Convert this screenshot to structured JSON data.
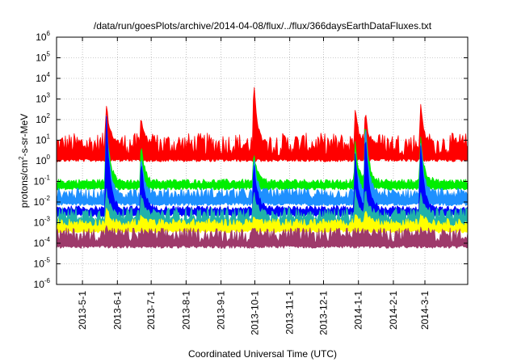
{
  "chart_data": {
    "type": "area",
    "title": "/data/run/goesPlots/archive/2014-04-08/flux/../flux/366daysEarthDataFluxes.txt",
    "xlabel": "Coordinated Universal Time (UTC)",
    "ylabel": "protons/cm2-s-sr-MeV",
    "ylabel_parts": {
      "pre": "protons/cm",
      "sup": "2",
      "post": "-s-sr-MeV"
    },
    "y_scale": "log",
    "ylim_exponents": [
      -6,
      6
    ],
    "y_ticks": [
      {
        "base": "10",
        "exp": "-6"
      },
      {
        "base": "10",
        "exp": "-5"
      },
      {
        "base": "10",
        "exp": "-4"
      },
      {
        "base": "10",
        "exp": "-3"
      },
      {
        "base": "10",
        "exp": "-2"
      },
      {
        "base": "10",
        "exp": "-1"
      },
      {
        "base": "10",
        "exp": "0"
      },
      {
        "base": "10",
        "exp": "1"
      },
      {
        "base": "10",
        "exp": "2"
      },
      {
        "base": "10",
        "exp": "3"
      },
      {
        "base": "10",
        "exp": "4"
      },
      {
        "base": "10",
        "exp": "5"
      },
      {
        "base": "10",
        "exp": "6"
      }
    ],
    "x_range": [
      "2013-04-08",
      "2014-04-08"
    ],
    "x_ticks": [
      "2013-5-1",
      "2013-6-1",
      "2013-7-1",
      "2013-8-1",
      "2013-9-1",
      "2013-10-1",
      "2013-11-1",
      "2013-12-1",
      "2014-1-1",
      "2014-2-1",
      "2014-3-1"
    ],
    "grid": true,
    "legend": "none",
    "events": [
      "2013-05-22",
      "2013-06-22",
      "2013-09-30",
      "2013-12-29",
      "2014-01-07",
      "2014-02-25"
    ],
    "series": [
      {
        "color": "#ff0000",
        "baseline_log10": 0.8,
        "spread": 0.55,
        "event_peaks_log10": [
          3.0,
          2.3,
          4.0,
          2.6,
          2.4,
          2.8
        ]
      },
      {
        "color": "#00ee00",
        "baseline_log10": -1.0,
        "spread": 0.12,
        "event_peaks_log10": [
          2.4,
          0.8,
          0.5,
          0.9,
          2.2,
          1.3
        ]
      },
      {
        "color": "#1e90ff",
        "baseline_log10": -1.6,
        "spread": 0.28,
        "event_peaks_log10": [
          2.5,
          0.3,
          0.2,
          0.4,
          2.0,
          1.2
        ]
      },
      {
        "color": "#0000ff",
        "baseline_log10": -2.3,
        "spread": 0.12,
        "event_peaks_log10": [
          2.7,
          0.2,
          0.1,
          0.3,
          1.8,
          1.1
        ]
      },
      {
        "color": "#20b2aa",
        "baseline_log10": -2.6,
        "spread": 0.35,
        "event_peaks_log10": [
          -1.2,
          -1.5,
          -1.4,
          -1.4,
          -1.3,
          -1.3
        ]
      },
      {
        "color": "#ffff00",
        "baseline_log10": -3.0,
        "spread": 0.2,
        "event_peaks_log10": [
          -2.2,
          -2.6,
          -2.6,
          -2.5,
          -2.3,
          -2.4
        ]
      },
      {
        "color": "#9e3a6b",
        "baseline_log10": -3.6,
        "spread": 0.35,
        "event_peaks_log10": [
          -3.2,
          -3.4,
          -3.4,
          -3.4,
          -3.3,
          -3.3
        ]
      }
    ]
  }
}
